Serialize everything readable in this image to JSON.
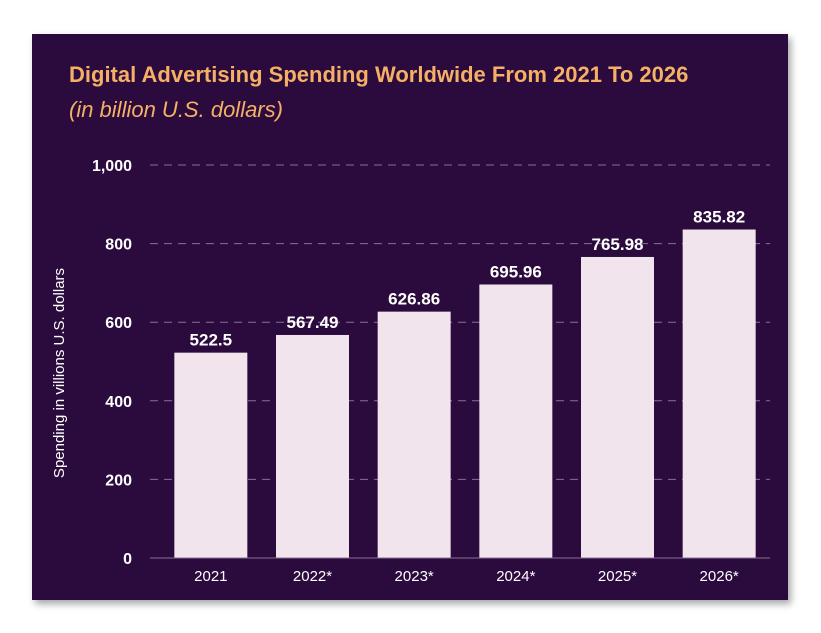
{
  "colors": {
    "background": "#2b0a3d",
    "title": "#f5b065",
    "bar": "#f1e4ec",
    "text": "#ffffff",
    "grid": "#8a6f99"
  },
  "chart_data": {
    "type": "bar",
    "title": "Digital Advertising Spending Worldwide From 2021 To 2026",
    "subtitle": "(in billion U.S. dollars)",
    "xlabel": "",
    "ylabel": "Spending in villions U.S. dollars",
    "categories": [
      "2021",
      "2022*",
      "2023*",
      "2024*",
      "2025*",
      "2026*"
    ],
    "values": [
      522.5,
      567.49,
      626.86,
      695.96,
      765.98,
      835.82
    ],
    "value_labels": [
      "522.5",
      "567.49",
      "626.86",
      "695.96",
      "765.98",
      "835.82"
    ],
    "ylim": [
      0,
      1000
    ],
    "yticks": [
      0,
      200,
      400,
      600,
      800,
      1000
    ],
    "ytick_labels": [
      "0",
      "200",
      "400",
      "600",
      "800",
      "1,000"
    ],
    "grid": true,
    "legend": "none"
  }
}
